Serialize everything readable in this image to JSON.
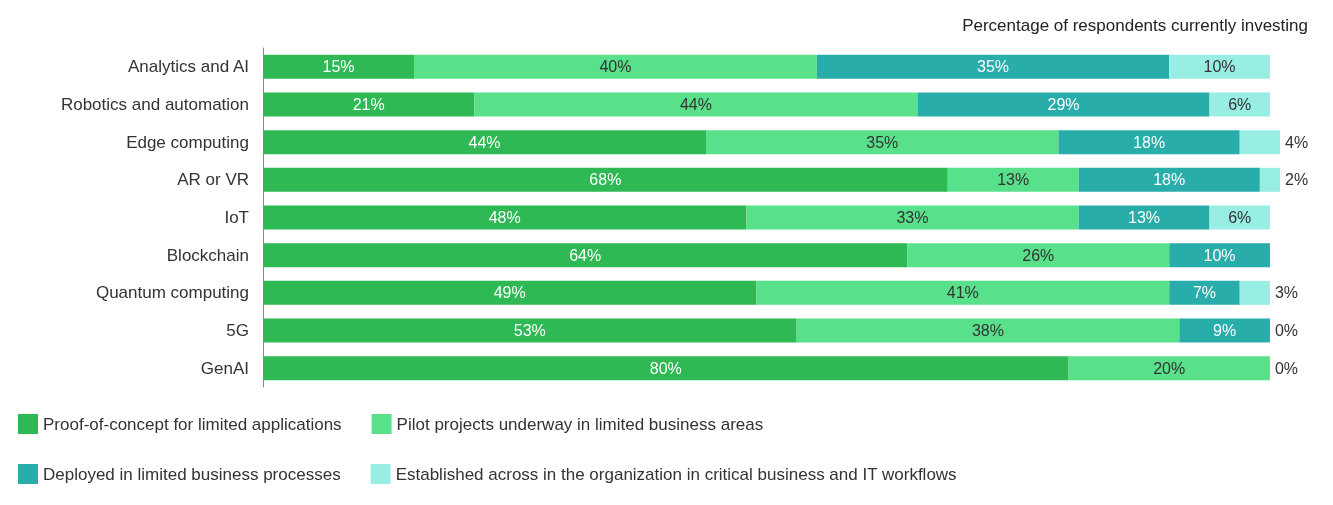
{
  "chart_data": {
    "type": "bar",
    "orientation": "horizontal",
    "stacked": true,
    "title": "Percentage of respondents currently investing",
    "categories": [
      "Analytics and AI",
      "Robotics and automation",
      "Edge computing",
      "AR or VR",
      "IoT",
      "Blockchain",
      "Quantum computing",
      "5G",
      "GenAI"
    ],
    "series": [
      {
        "name": "Proof-of-concept for limited applications",
        "color": "#2eb955",
        "values": [
          15,
          21,
          44,
          68,
          48,
          64,
          49,
          53,
          80
        ],
        "value_labels": [
          "15%",
          "21%",
          "44%",
          "68%",
          "48%",
          "64%",
          "49%",
          "53%",
          "80%"
        ]
      },
      {
        "name": "Pilot projects underway in limited business areas",
        "color": "#58e08a",
        "values": [
          40,
          44,
          35,
          13,
          33,
          26,
          41,
          38,
          20
        ],
        "value_labels": [
          "40%",
          "44%",
          "35%",
          "13%",
          "33%",
          "26%",
          "41%",
          "38%",
          "20%"
        ]
      },
      {
        "name": "Deployed in limited business processes",
        "color": "#28adab",
        "values": [
          35,
          29,
          18,
          18,
          13,
          10,
          7,
          9,
          null
        ],
        "value_labels": [
          "35%",
          "29%",
          "18%",
          "18%",
          "13%",
          "10%",
          "7%",
          "9%",
          null
        ]
      },
      {
        "name": "Established across in the organization in critical business and IT workflows",
        "color": "#99eee4",
        "values": [
          10,
          6,
          4,
          2,
          6,
          null,
          3,
          0,
          0
        ],
        "value_labels": [
          "10%",
          "6%",
          "4%",
          "2%",
          "6%",
          null,
          "3%",
          "0%",
          "0%"
        ]
      }
    ],
    "legend": "bottom"
  }
}
